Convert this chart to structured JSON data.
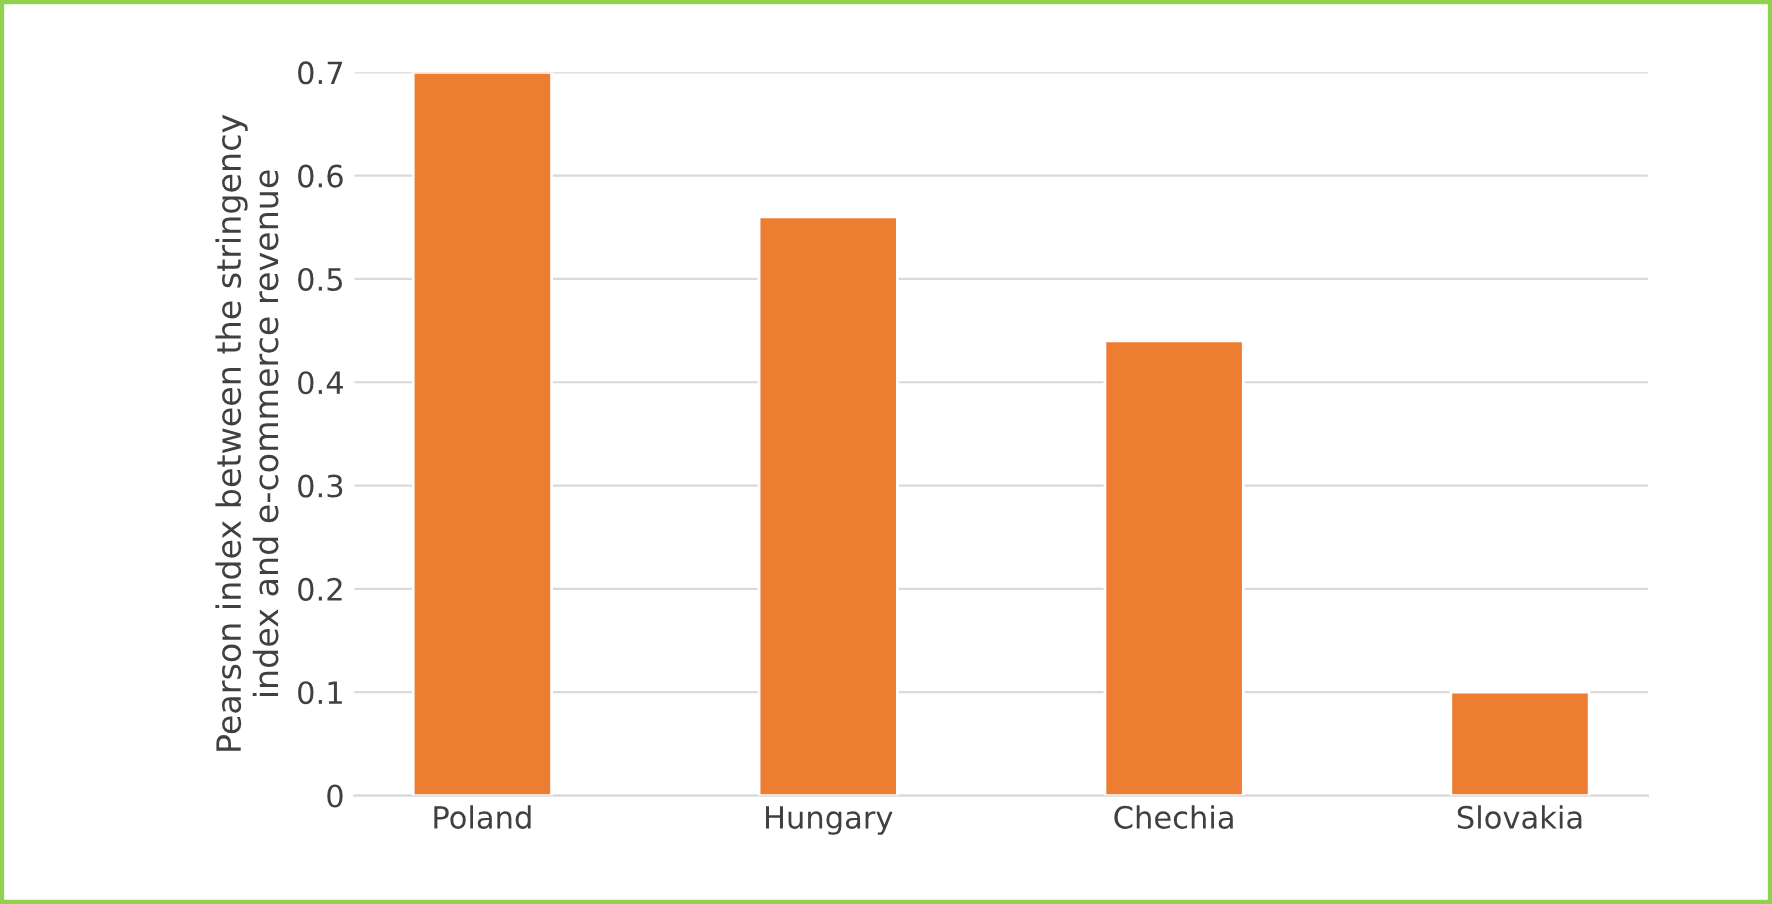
{
  "chart_data": {
    "type": "bar",
    "ylabel": "Pearson index between the stringency\nindex and e-commerce revenue",
    "categories": [
      "Poland",
      "Hungary",
      "Chechia",
      "Slovakia"
    ],
    "values": [
      0.7,
      0.56,
      0.44,
      0.1
    ],
    "color": "#ed7d31",
    "ylim": [
      0,
      0.7
    ],
    "yticks": [
      0,
      0.1,
      0.2,
      0.3,
      0.4,
      0.5,
      0.6,
      0.7
    ],
    "grid": "y"
  }
}
